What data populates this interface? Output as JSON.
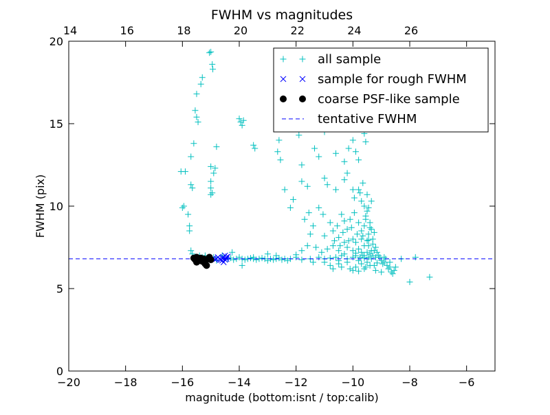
{
  "chart_data": {
    "type": "scatter",
    "title": "FWHM vs magnitudes",
    "xlabel": "magnitude (bottom:isnt / top:calib)",
    "ylabel": "FWHM (pix)",
    "xlim": [
      -20,
      -5
    ],
    "ylim": [
      0,
      20
    ],
    "x_ticks": [
      -20,
      -18,
      -16,
      -14,
      -12,
      -10,
      -8,
      -6
    ],
    "x_tick_labels": [
      "−20",
      "−18",
      "−16",
      "−14",
      "−12",
      "−10",
      "−8",
      "−6"
    ],
    "y_ticks": [
      0,
      5,
      10,
      15,
      20
    ],
    "y_tick_labels": [
      "0",
      "5",
      "10",
      "15",
      "20"
    ],
    "top_axis": {
      "label_offset": 33.95,
      "ticks": [
        14,
        16,
        18,
        20,
        22,
        24,
        26
      ],
      "tick_labels": [
        "14",
        "16",
        "18",
        "20",
        "22",
        "24",
        "26"
      ]
    },
    "legend_position": "upper-right",
    "series": [
      {
        "name": "all sample",
        "marker": "+",
        "color": "#00bfbf",
        "points": [
          [
            -15.05,
            19.3
          ],
          [
            -15.0,
            19.35
          ],
          [
            -14.95,
            18.6
          ],
          [
            -14.93,
            18.3
          ],
          [
            -15.3,
            17.8
          ],
          [
            -15.35,
            17.4
          ],
          [
            -15.5,
            16.8
          ],
          [
            -15.55,
            15.8
          ],
          [
            -15.5,
            15.4
          ],
          [
            -15.45,
            15.1
          ],
          [
            -15.6,
            13.8
          ],
          [
            -15.7,
            13.0
          ],
          [
            -15.0,
            12.4
          ],
          [
            -14.8,
            13.6
          ],
          [
            -15.9,
            12.1
          ],
          [
            -16.05,
            12.1
          ],
          [
            -14.85,
            12.3
          ],
          [
            -14.9,
            12.0
          ],
          [
            -15.7,
            11.3
          ],
          [
            -15.65,
            11.1
          ],
          [
            -15.0,
            11.5
          ],
          [
            -15.0,
            11.1
          ],
          [
            -14.95,
            10.8
          ],
          [
            -15.0,
            10.7
          ],
          [
            -15.95,
            10.0
          ],
          [
            -16.0,
            9.9
          ],
          [
            -15.8,
            9.5
          ],
          [
            -15.75,
            8.8
          ],
          [
            -15.75,
            8.5
          ],
          [
            -15.7,
            7.3
          ],
          [
            -15.65,
            7.1
          ],
          [
            -15.4,
            7.0
          ],
          [
            -14.0,
            15.3
          ],
          [
            -13.95,
            15.1
          ],
          [
            -13.9,
            14.9
          ],
          [
            -13.85,
            15.2
          ],
          [
            -13.5,
            13.7
          ],
          [
            -13.45,
            13.5
          ],
          [
            -12.6,
            14.0
          ],
          [
            -12.65,
            13.3
          ],
          [
            -12.55,
            12.8
          ],
          [
            -12.4,
            11.0
          ],
          [
            -12.1,
            10.4
          ],
          [
            -12.2,
            9.9
          ],
          [
            -11.8,
            12.5
          ],
          [
            -11.8,
            11.5
          ],
          [
            -12.0,
            15.1
          ],
          [
            -11.9,
            14.3
          ],
          [
            -11.5,
            14.9
          ],
          [
            -11.35,
            13.5
          ],
          [
            -11.2,
            13.0
          ],
          [
            -11.0,
            14.5
          ],
          [
            -10.8,
            15.0
          ],
          [
            -10.6,
            13.2
          ],
          [
            -10.3,
            12.7
          ],
          [
            -10.2,
            12.0
          ],
          [
            -10.15,
            13.5
          ],
          [
            -10.0,
            14.0
          ],
          [
            -9.9,
            13.3
          ],
          [
            -9.8,
            15.0
          ],
          [
            -9.8,
            12.8
          ],
          [
            -9.6,
            14.4
          ],
          [
            -9.55,
            13.9
          ],
          [
            -11.6,
            11.2
          ],
          [
            -11.0,
            11.7
          ],
          [
            -10.9,
            11.3
          ],
          [
            -10.6,
            11.0
          ],
          [
            -10.3,
            11.6
          ],
          [
            -10.0,
            11.0
          ],
          [
            -9.95,
            10.5
          ],
          [
            -9.8,
            11.0
          ],
          [
            -9.7,
            10.3
          ],
          [
            -9.6,
            10.0
          ],
          [
            -9.5,
            9.7
          ],
          [
            -11.7,
            9.2
          ],
          [
            -11.55,
            9.6
          ],
          [
            -11.4,
            8.8
          ],
          [
            -11.2,
            9.9
          ],
          [
            -11.05,
            9.5
          ],
          [
            -10.8,
            9.0
          ],
          [
            -10.55,
            8.8
          ],
          [
            -10.4,
            9.5
          ],
          [
            -10.3,
            9.1
          ],
          [
            -10.2,
            8.6
          ],
          [
            -10.1,
            9.2
          ],
          [
            -9.95,
            9.6
          ],
          [
            -9.8,
            9.0
          ],
          [
            -9.7,
            8.5
          ],
          [
            -9.6,
            8.8
          ],
          [
            -9.55,
            9.2
          ],
          [
            -9.45,
            8.3
          ],
          [
            -9.4,
            9.0
          ],
          [
            -9.35,
            8.6
          ],
          [
            -9.3,
            8.0
          ],
          [
            -11.5,
            8.3
          ],
          [
            -11.0,
            8.2
          ],
          [
            -10.7,
            8.5
          ],
          [
            -10.5,
            8.1
          ],
          [
            -10.3,
            7.8
          ],
          [
            -10.0,
            8.0
          ],
          [
            -9.9,
            7.8
          ],
          [
            -9.7,
            8.0
          ],
          [
            -9.6,
            7.6
          ],
          [
            -9.5,
            7.9
          ],
          [
            -9.45,
            7.6
          ],
          [
            -9.3,
            7.7
          ],
          [
            -9.25,
            7.3
          ],
          [
            -9.2,
            7.5
          ],
          [
            -11.8,
            7.3
          ],
          [
            -11.6,
            7.6
          ],
          [
            -11.3,
            7.5
          ],
          [
            -11.1,
            7.2
          ],
          [
            -10.9,
            7.4
          ],
          [
            -10.7,
            7.6
          ],
          [
            -10.5,
            7.3
          ],
          [
            -10.3,
            7.1
          ],
          [
            -10.2,
            7.5
          ],
          [
            -10.0,
            7.3
          ],
          [
            -9.9,
            7.0
          ],
          [
            -9.8,
            7.4
          ],
          [
            -9.7,
            7.2
          ],
          [
            -9.6,
            7.0
          ],
          [
            -9.5,
            7.2
          ],
          [
            -9.45,
            6.9
          ],
          [
            -9.4,
            7.1
          ],
          [
            -9.35,
            6.8
          ],
          [
            -9.3,
            7.0
          ],
          [
            -9.2,
            6.9
          ],
          [
            -9.1,
            7.0
          ],
          [
            -9.0,
            6.7
          ],
          [
            -8.9,
            6.6
          ],
          [
            -8.85,
            6.8
          ],
          [
            -8.8,
            6.4
          ],
          [
            -8.7,
            6.3
          ],
          [
            -8.65,
            6.0
          ],
          [
            -8.6,
            5.9
          ],
          [
            -8.55,
            6.1
          ],
          [
            -8.5,
            6.3
          ],
          [
            -8.3,
            6.8
          ],
          [
            -8.0,
            5.4
          ],
          [
            -7.3,
            5.7
          ],
          [
            -7.8,
            6.9
          ],
          [
            -10.0,
            6.1
          ],
          [
            -9.6,
            6.2
          ],
          [
            -9.4,
            6.4
          ],
          [
            -9.2,
            6.1
          ],
          [
            -9.0,
            6.0
          ],
          [
            -11.0,
            6.6
          ],
          [
            -10.8,
            6.4
          ],
          [
            -10.5,
            6.5
          ],
          [
            -10.2,
            6.6
          ],
          [
            -9.9,
            6.3
          ],
          [
            -9.7,
            6.5
          ],
          [
            -9.5,
            6.6
          ],
          [
            -12.2,
            6.8
          ],
          [
            -12.0,
            6.9
          ],
          [
            -11.8,
            6.75
          ],
          [
            -11.5,
            6.8
          ],
          [
            -11.2,
            6.9
          ],
          [
            -11.0,
            6.8
          ],
          [
            -10.8,
            6.85
          ],
          [
            -10.5,
            6.7
          ],
          [
            -10.2,
            6.8
          ],
          [
            -10.0,
            6.9
          ],
          [
            -9.8,
            6.7
          ],
          [
            -9.6,
            6.85
          ],
          [
            -14.4,
            6.8
          ],
          [
            -14.3,
            6.85
          ],
          [
            -14.2,
            6.75
          ],
          [
            -14.1,
            6.8
          ],
          [
            -14.0,
            6.9
          ],
          [
            -13.9,
            6.8
          ],
          [
            -13.8,
            6.75
          ],
          [
            -13.7,
            6.8
          ],
          [
            -13.6,
            6.85
          ],
          [
            -13.5,
            6.8
          ],
          [
            -13.4,
            6.75
          ],
          [
            -13.3,
            6.8
          ],
          [
            -13.2,
            6.85
          ],
          [
            -13.1,
            6.8
          ],
          [
            -13.0,
            6.7
          ],
          [
            -12.9,
            6.8
          ],
          [
            -12.8,
            6.75
          ],
          [
            -12.7,
            6.8
          ],
          [
            -12.6,
            6.85
          ],
          [
            -12.5,
            6.75
          ],
          [
            -12.4,
            6.8
          ],
          [
            -14.25,
            7.2
          ],
          [
            -13.0,
            7.1
          ],
          [
            -12.0,
            7.05
          ],
          [
            -12.7,
            7.0
          ],
          [
            -13.9,
            6.4
          ],
          [
            -12.3,
            6.7
          ],
          [
            -13.5,
            6.9
          ],
          [
            -14.6,
            7.0
          ],
          [
            -15.3,
            6.9
          ],
          [
            -15.1,
            6.7
          ],
          [
            -15.2,
            7.0
          ],
          [
            -15.0,
            6.8
          ],
          [
            -14.9,
            6.9
          ],
          [
            -14.8,
            6.7
          ],
          [
            -15.4,
            6.75
          ],
          [
            -10.6,
            6.9
          ],
          [
            -10.4,
            7.0
          ],
          [
            -9.9,
            7.15
          ],
          [
            -9.75,
            6.9
          ],
          [
            -9.65,
            7.0
          ],
          [
            -9.35,
            7.3
          ],
          [
            -9.15,
            7.2
          ],
          [
            -9.05,
            6.9
          ],
          [
            -8.95,
            6.5
          ],
          [
            -8.75,
            6.2
          ],
          [
            -10.1,
            6.2
          ],
          [
            -9.8,
            6.05
          ],
          [
            -9.55,
            6.3
          ],
          [
            -9.25,
            6.4
          ],
          [
            -9.15,
            6.55
          ],
          [
            -8.9,
            6.9
          ],
          [
            -8.7,
            6.6
          ],
          [
            -11.4,
            6.6
          ],
          [
            -10.7,
            6.2
          ],
          [
            -10.4,
            6.3
          ],
          [
            -9.85,
            8.3
          ],
          [
            -9.65,
            8.2
          ],
          [
            -9.45,
            7.95
          ],
          [
            -9.25,
            8.4
          ],
          [
            -9.55,
            9.4
          ],
          [
            -9.45,
            9.9
          ],
          [
            -9.35,
            10.3
          ],
          [
            -9.75,
            10.8
          ],
          [
            -9.65,
            11.4
          ],
          [
            -9.5,
            10.7
          ],
          [
            -9.4,
            8.7
          ],
          [
            -10.05,
            8.7
          ],
          [
            -10.15,
            7.9
          ],
          [
            -10.35,
            8.4
          ],
          [
            -10.45,
            7.6
          ],
          [
            -10.65,
            7.9
          ]
        ]
      },
      {
        "name": "sample for rough FWHM",
        "marker": "x",
        "color": "#0000ff",
        "points": [
          [
            -14.4,
            6.95
          ],
          [
            -14.45,
            6.8
          ],
          [
            -14.5,
            6.75
          ],
          [
            -14.55,
            6.9
          ],
          [
            -14.6,
            6.85
          ],
          [
            -14.65,
            6.75
          ],
          [
            -14.7,
            6.8
          ],
          [
            -14.75,
            6.9
          ],
          [
            -14.8,
            6.8
          ],
          [
            -14.85,
            6.75
          ],
          [
            -14.9,
            6.85
          ],
          [
            -14.55,
            6.6
          ],
          [
            -14.5,
            7.0
          ],
          [
            -14.6,
            6.7
          ],
          [
            -14.45,
            6.9
          ]
        ]
      },
      {
        "name": "coarse PSF-like sample",
        "marker": "o",
        "color": "#000000",
        "points": [
          [
            -15.6,
            6.85
          ],
          [
            -15.55,
            6.75
          ],
          [
            -15.5,
            6.9
          ],
          [
            -15.45,
            6.8
          ],
          [
            -15.4,
            6.7
          ],
          [
            -15.35,
            6.85
          ],
          [
            -15.3,
            6.75
          ],
          [
            -15.25,
            6.8
          ],
          [
            -15.2,
            6.5
          ],
          [
            -15.15,
            6.4
          ],
          [
            -15.1,
            6.8
          ],
          [
            -15.05,
            6.9
          ],
          [
            -15.0,
            6.75
          ],
          [
            -15.5,
            6.6
          ],
          [
            -15.3,
            6.65
          ]
        ]
      },
      {
        "name": "tentative FWHM",
        "marker": "--",
        "color": "#0000ff",
        "constant_y": 6.8
      }
    ]
  }
}
